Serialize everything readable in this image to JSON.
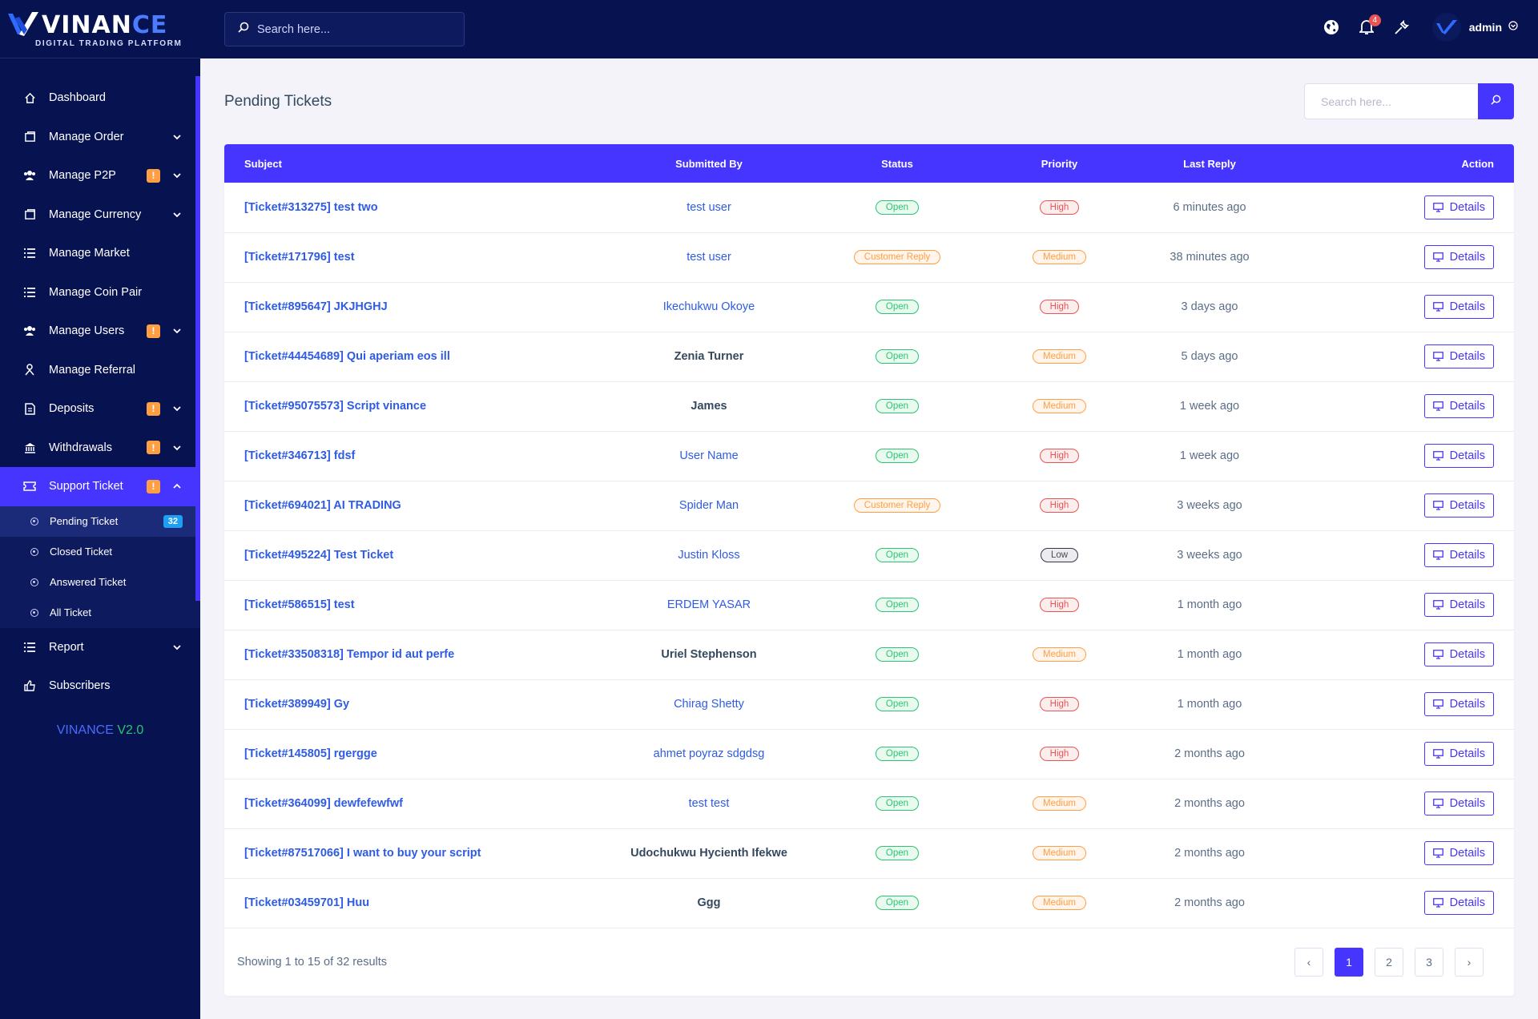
{
  "brand": {
    "name_part1": "VINAN",
    "name_part2": "CE",
    "tagline": "DIGITAL TRADING PLATFORM"
  },
  "topbar": {
    "search_placeholder": "Search here...",
    "notification_count": "4",
    "user_name": "admin"
  },
  "sidebar": {
    "items": [
      {
        "label": "Dashboard",
        "icon": "home-icon"
      },
      {
        "label": "Manage Order",
        "icon": "order-icon"
      },
      {
        "label": "Manage P2P",
        "icon": "users-icon"
      },
      {
        "label": "Manage Currency",
        "icon": "currency-icon"
      },
      {
        "label": "Manage Market",
        "icon": "list-icon"
      },
      {
        "label": "Manage Coin Pair",
        "icon": "list-icon"
      },
      {
        "label": "Manage Users",
        "icon": "users-icon"
      },
      {
        "label": "Manage Referral",
        "icon": "referral-icon"
      },
      {
        "label": "Deposits",
        "icon": "deposit-icon"
      },
      {
        "label": "Withdrawals",
        "icon": "bank-icon"
      },
      {
        "label": "Support Ticket",
        "icon": "ticket-icon"
      },
      {
        "label": "Report",
        "icon": "list-icon"
      },
      {
        "label": "Subscribers",
        "icon": "thumbs-up-icon"
      }
    ],
    "warn_mark": "!",
    "support_sub": [
      {
        "label": "Pending Ticket",
        "count": "32"
      },
      {
        "label": "Closed Ticket"
      },
      {
        "label": "Answered Ticket"
      },
      {
        "label": "All Ticket"
      }
    ],
    "version_name": "VINANCE",
    "version_num": "V2.0"
  },
  "page": {
    "title": "Pending Tickets",
    "search_placeholder": "Search here..."
  },
  "table": {
    "headers": [
      "Subject",
      "Submitted By",
      "Status",
      "Priority",
      "Last Reply",
      "Action"
    ],
    "action_label": "Details",
    "rows": [
      {
        "subject": "[Ticket#313275] test two",
        "by": "test user",
        "by_link": true,
        "status": "Open",
        "priority": "High",
        "last": "6 minutes ago"
      },
      {
        "subject": "[Ticket#171796] test",
        "by": "test user",
        "by_link": true,
        "status": "Customer Reply",
        "priority": "Medium",
        "last": "38 minutes ago"
      },
      {
        "subject": "[Ticket#895647] JKJHGHJ",
        "by": "Ikechukwu Okoye",
        "by_link": true,
        "status": "Open",
        "priority": "High",
        "last": "3 days ago"
      },
      {
        "subject": "[Ticket#44454689] Qui aperiam eos ill",
        "by": "Zenia Turner",
        "by_link": false,
        "status": "Open",
        "priority": "Medium",
        "last": "5 days ago"
      },
      {
        "subject": "[Ticket#95075573] Script vinance",
        "by": "James",
        "by_link": false,
        "status": "Open",
        "priority": "Medium",
        "last": "1 week ago"
      },
      {
        "subject": "[Ticket#346713] fdsf",
        "by": "User Name",
        "by_link": true,
        "status": "Open",
        "priority": "High",
        "last": "1 week ago"
      },
      {
        "subject": "[Ticket#694021] AI TRADING",
        "by": "Spider Man",
        "by_link": true,
        "status": "Customer Reply",
        "priority": "High",
        "last": "3 weeks ago"
      },
      {
        "subject": "[Ticket#495224] Test Ticket",
        "by": "Justin Kloss",
        "by_link": true,
        "status": "Open",
        "priority": "Low",
        "last": "3 weeks ago"
      },
      {
        "subject": "[Ticket#586515] test",
        "by": "ERDEM YASAR",
        "by_link": true,
        "status": "Open",
        "priority": "High",
        "last": "1 month ago"
      },
      {
        "subject": "[Ticket#33508318] Tempor id aut perfe",
        "by": "Uriel Stephenson",
        "by_link": false,
        "status": "Open",
        "priority": "Medium",
        "last": "1 month ago"
      },
      {
        "subject": "[Ticket#389949] Gy",
        "by": "Chirag Shetty",
        "by_link": true,
        "status": "Open",
        "priority": "High",
        "last": "1 month ago"
      },
      {
        "subject": "[Ticket#145805] rgergge",
        "by": "ahmet poyraz sdgdsg",
        "by_link": true,
        "status": "Open",
        "priority": "High",
        "last": "2 months ago"
      },
      {
        "subject": "[Ticket#364099] dewfefewfwf",
        "by": "test test",
        "by_link": true,
        "status": "Open",
        "priority": "Medium",
        "last": "2 months ago"
      },
      {
        "subject": "[Ticket#87517066] I want to buy your script",
        "by": "Udochukwu Hycienth Ifekwe",
        "by_link": false,
        "status": "Open",
        "priority": "Medium",
        "last": "2 months ago"
      },
      {
        "subject": "[Ticket#03459701] Huu",
        "by": "Ggg",
        "by_link": false,
        "status": "Open",
        "priority": "Medium",
        "last": "2 months ago"
      }
    ]
  },
  "footer": {
    "showing": "Showing 1 to 15 of 32 results",
    "prev": "‹",
    "next": "›",
    "pages": [
      "1",
      "2",
      "3"
    ],
    "current_page": "1"
  },
  "colors": {
    "primary": "#4634ff",
    "sidebar": "#071251",
    "open": "#28c76f",
    "warning": "#ff9f43",
    "danger": "#ea5455"
  }
}
